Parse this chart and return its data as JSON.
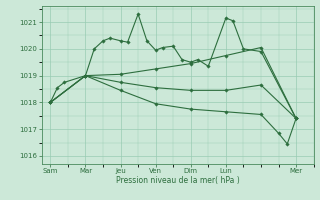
{
  "background_color": "#cce8d8",
  "grid_color": "#99ccb3",
  "line_color": "#2d6e3e",
  "marker_color": "#2d6e3e",
  "x_ticks_labels": [
    "Sam",
    "Mar",
    "Jeu",
    "Ven",
    "Dim",
    "Lun",
    "Mer"
  ],
  "x_ticks_pos": [
    0,
    2,
    4,
    6,
    8,
    10,
    14
  ],
  "ylim": [
    1015.7,
    1021.6
  ],
  "yticks": [
    1016,
    1017,
    1018,
    1019,
    1020,
    1021
  ],
  "xlabel": "Pression niveau de la mer( hPa )",
  "series": [
    [
      0,
      1018.0,
      0.4,
      1018.55,
      0.8,
      1018.75,
      2.0,
      1019.0,
      2.5,
      1020.0,
      3.0,
      1020.3,
      3.4,
      1020.4,
      4.0,
      1020.3,
      4.4,
      1020.25,
      5.0,
      1021.3,
      5.5,
      1020.3,
      6.0,
      1019.95,
      6.4,
      1020.05,
      7.0,
      1020.1,
      7.5,
      1019.6,
      8.0,
      1019.5,
      8.4,
      1019.6,
      9.0,
      1019.35,
      10.0,
      1021.15,
      10.4,
      1021.05,
      11.0,
      1020.0,
      12.0,
      1019.9,
      14.0,
      1017.4
    ],
    [
      0,
      1018.0,
      2.0,
      1019.0,
      4.0,
      1019.05,
      6.0,
      1019.25,
      8.0,
      1019.45,
      10.0,
      1019.75,
      12.0,
      1020.05,
      14.0,
      1017.4
    ],
    [
      0,
      1018.0,
      2.0,
      1019.0,
      4.0,
      1018.75,
      6.0,
      1018.55,
      8.0,
      1018.45,
      10.0,
      1018.45,
      12.0,
      1018.65,
      14.0,
      1017.4
    ],
    [
      0,
      1018.0,
      2.0,
      1019.0,
      4.0,
      1018.45,
      6.0,
      1017.95,
      8.0,
      1017.75,
      10.0,
      1017.65,
      12.0,
      1017.55,
      13.0,
      1016.85,
      13.5,
      1016.45,
      14.0,
      1017.4
    ]
  ]
}
